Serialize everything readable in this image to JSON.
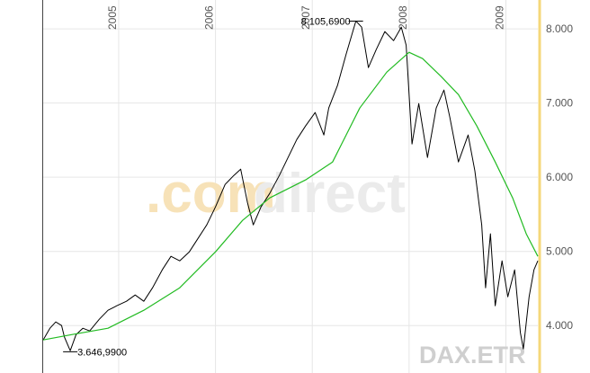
{
  "chart_data": {
    "type": "line",
    "watermark": [
      ".com",
      "direct"
    ],
    "symbol": "DAX.ETR",
    "xlim": [
      2004.22,
      2009.33
    ],
    "xticks": [
      2005,
      2006,
      2007,
      2008,
      2009
    ],
    "ylim": [
      3360,
      8390
    ],
    "yticks": [
      {
        "value": 4000,
        "label": "4.000"
      },
      {
        "value": 5000,
        "label": "5.000"
      },
      {
        "value": 6000,
        "label": "6.000"
      },
      {
        "value": 7000,
        "label": "7.000"
      },
      {
        "value": 8000,
        "label": "8.000"
      }
    ],
    "grid": true,
    "series": [
      {
        "color": "#000000",
        "x": [
          2004.22,
          2004.29,
          2004.35,
          2004.41,
          2004.44,
          2004.5,
          2004.56,
          2004.63,
          2004.7,
          2004.8,
          2004.89,
          2004.98,
          2005.08,
          2005.17,
          2005.26,
          2005.35,
          2005.45,
          2005.54,
          2005.63,
          2005.73,
          2005.82,
          2005.91,
          2006.0,
          2006.1,
          2006.19,
          2006.26,
          2006.33,
          2006.39,
          2006.47,
          2006.56,
          2006.66,
          2006.75,
          2006.84,
          2006.93,
          2007.03,
          2007.12,
          2007.17,
          2007.26,
          2007.35,
          2007.45,
          2007.51,
          2007.58,
          2007.66,
          2007.75,
          2007.84,
          2007.92,
          2007.97,
          2008.03,
          2008.1,
          2008.19,
          2008.28,
          2008.36,
          2008.42,
          2008.51,
          2008.61,
          2008.68,
          2008.75,
          2008.79,
          2008.84,
          2008.89,
          2008.96,
          2009.02,
          2009.09,
          2009.15,
          2009.18,
          2009.24,
          2009.29,
          2009.33
        ],
        "values": [
          3806,
          3964,
          4048,
          4000,
          3842,
          3660,
          3879,
          3964,
          3927,
          4085,
          4206,
          4267,
          4327,
          4412,
          4327,
          4509,
          4752,
          4933,
          4873,
          4994,
          5176,
          5358,
          5600,
          5903,
          6024,
          6109,
          5661,
          5358,
          5600,
          5782,
          6024,
          6267,
          6509,
          6691,
          6873,
          6570,
          6933,
          7236,
          7661,
          8106,
          8024,
          7479,
          7721,
          7964,
          7842,
          8024,
          7782,
          6448,
          6994,
          6267,
          6933,
          7176,
          6812,
          6206,
          6570,
          6085,
          5358,
          4509,
          5237,
          4267,
          4873,
          4388,
          4752,
          3903,
          3685,
          4388,
          4752,
          4873
        ]
      },
      {
        "color": "#22bb22",
        "x": [
          2004.22,
          2004.52,
          2004.89,
          2005.26,
          2005.63,
          2006.0,
          2006.28,
          2006.56,
          2006.93,
          2007.21,
          2007.49,
          2007.77,
          2008.0,
          2008.14,
          2008.33,
          2008.51,
          2008.7,
          2008.89,
          2009.07,
          2009.21,
          2009.33
        ],
        "values": [
          3806,
          3879,
          3964,
          4206,
          4509,
          4994,
          5418,
          5721,
          5964,
          6206,
          6933,
          7418,
          7685,
          7600,
          7358,
          7115,
          6691,
          6206,
          5721,
          5237,
          4933
        ]
      }
    ],
    "annotations": [
      {
        "text": "8.105,6900",
        "x": 2007.45,
        "y": 8105.69,
        "side": "left"
      },
      {
        "text": "3.646,9900",
        "x": 2004.5,
        "y": 3646.99,
        "side": "right"
      }
    ]
  }
}
